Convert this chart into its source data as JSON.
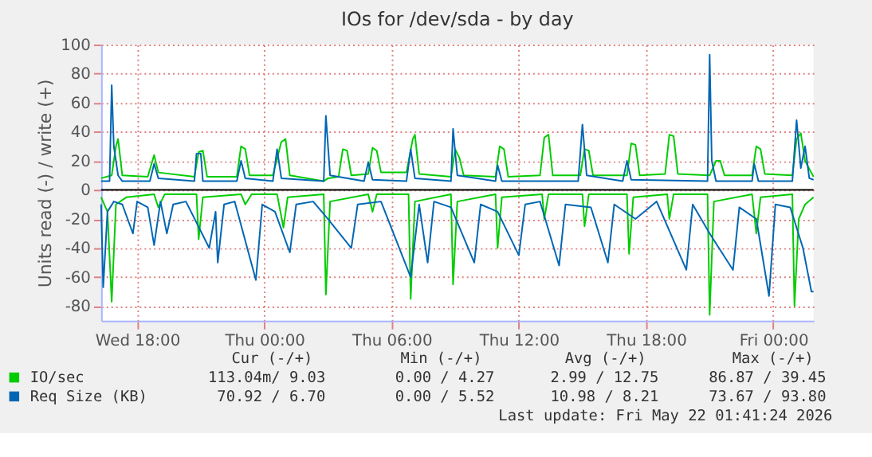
{
  "chart_data": {
    "type": "line",
    "title": "IOs for /dev/sda - by day",
    "ylabel": "Units read (-) / write (+)",
    "xlim": [
      "2026-05-20T16:18",
      "2026-05-22T01:54"
    ],
    "ylim": [
      -90,
      100
    ],
    "xticks": [
      {
        "value": "2026-05-20T18:00",
        "label": "Wed 18:00"
      },
      {
        "value": "2026-05-21T00:00",
        "label": "Thu 00:00"
      },
      {
        "value": "2026-05-21T06:00",
        "label": "Thu 06:00"
      },
      {
        "value": "2026-05-21T12:00",
        "label": "Thu 12:00"
      },
      {
        "value": "2026-05-21T18:00",
        "label": "Thu 18:00"
      },
      {
        "value": "2026-05-22T00:00",
        "label": "Fri 00:00"
      }
    ],
    "yticks": [
      -80,
      -60,
      -40,
      -20,
      0,
      20,
      40,
      60,
      80,
      100
    ],
    "grid": true,
    "legend": "bottom",
    "ref_lines": [
      {
        "axis": "y",
        "value": 0,
        "color": "#000000"
      }
    ],
    "series": [
      {
        "name": "IO/sec",
        "color": "#00cc00",
        "x": [
          "2026-05-20T16:18",
          "2026-05-20T16:48",
          "2026-05-20T17:00",
          "2026-05-20T17:06",
          "2026-05-20T17:18",
          "2026-05-20T18:30",
          "2026-05-20T18:48",
          "2026-05-20T19:00",
          "2026-05-20T20:42",
          "2026-05-20T20:54",
          "2026-05-20T21:06",
          "2026-05-20T21:18",
          "2026-05-20T22:42",
          "2026-05-20T22:54",
          "2026-05-20T23:06",
          "2026-05-20T23:18",
          "2026-05-21T00:24",
          "2026-05-21T00:48",
          "2026-05-21T01:00",
          "2026-05-21T01:12",
          "2026-05-21T02:48",
          "2026-05-21T03:00",
          "2026-05-21T03:30",
          "2026-05-21T03:42",
          "2026-05-21T03:54",
          "2026-05-21T04:06",
          "2026-05-21T04:54",
          "2026-05-21T05:06",
          "2026-05-21T05:18",
          "2026-05-21T05:30",
          "2026-05-21T06:42",
          "2026-05-21T07:00",
          "2026-05-21T07:06",
          "2026-05-21T07:18",
          "2026-05-21T08:48",
          "2026-05-21T09:00",
          "2026-05-21T09:12",
          "2026-05-21T09:24",
          "2026-05-21T10:54",
          "2026-05-21T11:06",
          "2026-05-21T11:18",
          "2026-05-21T11:30",
          "2026-05-21T13:00",
          "2026-05-21T13:12",
          "2026-05-21T13:24",
          "2026-05-21T13:36",
          "2026-05-21T14:54",
          "2026-05-21T15:06",
          "2026-05-21T15:18",
          "2026-05-21T15:30",
          "2026-05-21T17:06",
          "2026-05-21T17:18",
          "2026-05-21T17:30",
          "2026-05-21T17:42",
          "2026-05-21T18:54",
          "2026-05-21T19:06",
          "2026-05-21T19:18",
          "2026-05-21T19:30",
          "2026-05-21T21:00",
          "2026-05-21T21:18",
          "2026-05-21T21:30",
          "2026-05-21T21:42",
          "2026-05-21T23:00",
          "2026-05-21T23:12",
          "2026-05-21T23:24",
          "2026-05-21T23:36",
          "2026-05-22T00:54",
          "2026-05-22T01:06",
          "2026-05-22T01:18",
          "2026-05-22T01:30",
          "2026-05-22T01:54"
        ],
        "values": [
          8,
          10,
          30,
          35,
          10,
          9,
          24,
          12,
          9,
          26,
          27,
          9,
          9,
          30,
          28,
          10,
          10,
          33,
          35,
          10,
          6,
          8,
          9,
          28,
          27,
          10,
          11,
          29,
          27,
          12,
          12,
          35,
          38,
          11,
          9,
          28,
          22,
          10,
          9,
          30,
          28,
          9,
          10,
          36,
          38,
          10,
          10,
          28,
          27,
          10,
          10,
          32,
          31,
          10,
          11,
          38,
          37,
          11,
          10,
          20,
          20,
          10,
          10,
          30,
          28,
          11,
          10,
          35,
          39,
          20,
          9
        ]
      },
      {
        "color": "#00cc00",
        "x": [
          "2026-05-20T16:18",
          "2026-05-20T16:36",
          "2026-05-20T16:48",
          "2026-05-20T17:00",
          "2026-05-20T17:30",
          "2026-05-20T18:48",
          "2026-05-20T19:00",
          "2026-05-20T19:18",
          "2026-05-20T20:48",
          "2026-05-20T20:54",
          "2026-05-20T21:06",
          "2026-05-20T22:54",
          "2026-05-20T23:06",
          "2026-05-20T23:24",
          "2026-05-21T00:36",
          "2026-05-21T00:54",
          "2026-05-21T01:06",
          "2026-05-21T02:48",
          "2026-05-21T02:54",
          "2026-05-21T03:06",
          "2026-05-21T04:54",
          "2026-05-21T05:06",
          "2026-05-21T05:18",
          "2026-05-21T06:48",
          "2026-05-21T06:54",
          "2026-05-21T07:06",
          "2026-05-21T08:48",
          "2026-05-21T08:54",
          "2026-05-21T09:06",
          "2026-05-21T10:54",
          "2026-05-21T11:00",
          "2026-05-21T11:12",
          "2026-05-21T13:06",
          "2026-05-21T13:12",
          "2026-05-21T13:24",
          "2026-05-21T15:00",
          "2026-05-21T15:06",
          "2026-05-21T15:18",
          "2026-05-21T17:06",
          "2026-05-21T17:12",
          "2026-05-21T17:24",
          "2026-05-21T19:00",
          "2026-05-21T19:06",
          "2026-05-21T19:18",
          "2026-05-21T20:54",
          "2026-05-21T21:00",
          "2026-05-21T21:12",
          "2026-05-21T23:00",
          "2026-05-21T23:12",
          "2026-05-21T23:24",
          "2026-05-22T00:54",
          "2026-05-22T01:00",
          "2026-05-22T01:12",
          "2026-05-22T01:30",
          "2026-05-22T01:54"
        ],
        "values": [
          -5,
          -15,
          -77,
          -10,
          -5,
          -3,
          -12,
          -3,
          -3,
          -34,
          -5,
          -3,
          -10,
          -3,
          -3,
          -26,
          -5,
          -3,
          -72,
          -8,
          -3,
          -15,
          -3,
          -3,
          -75,
          -8,
          -3,
          -65,
          -8,
          -3,
          -40,
          -5,
          -3,
          -20,
          -3,
          -3,
          -25,
          -3,
          -3,
          -44,
          -5,
          -3,
          -20,
          -3,
          -3,
          -86,
          -8,
          -3,
          -30,
          -5,
          -3,
          -80,
          -20,
          -10,
          -5
        ]
      },
      {
        "name": "Req Size (KB)",
        "color": "#0066b3",
        "x": [
          "2026-05-20T16:18",
          "2026-05-20T16:42",
          "2026-05-20T16:48",
          "2026-05-20T16:54",
          "2026-05-20T17:06",
          "2026-05-20T17:18",
          "2026-05-20T18:36",
          "2026-05-20T18:48",
          "2026-05-20T19:00",
          "2026-05-20T20:42",
          "2026-05-20T20:48",
          "2026-05-20T21:00",
          "2026-05-20T21:06",
          "2026-05-20T22:42",
          "2026-05-20T22:54",
          "2026-05-20T23:06",
          "2026-05-21T00:24",
          "2026-05-21T00:36",
          "2026-05-21T00:48",
          "2026-05-21T02:48",
          "2026-05-21T02:54",
          "2026-05-21T03:06",
          "2026-05-21T04:42",
          "2026-05-21T04:54",
          "2026-05-21T05:06",
          "2026-05-21T06:42",
          "2026-05-21T06:54",
          "2026-05-21T07:06",
          "2026-05-21T08:48",
          "2026-05-21T08:54",
          "2026-05-21T09:06",
          "2026-05-21T10:54",
          "2026-05-21T11:00",
          "2026-05-21T11:12",
          "2026-05-21T14:48",
          "2026-05-21T15:00",
          "2026-05-21T15:12",
          "2026-05-21T16:54",
          "2026-05-21T17:06",
          "2026-05-21T17:18",
          "2026-05-21T20:54",
          "2026-05-21T21:00",
          "2026-05-21T21:06",
          "2026-05-21T21:18",
          "2026-05-21T23:00",
          "2026-05-21T23:06",
          "2026-05-21T23:18",
          "2026-05-22T00:54",
          "2026-05-22T01:06",
          "2026-05-22T01:18",
          "2026-05-22T01:30",
          "2026-05-22T01:42",
          "2026-05-22T01:54"
        ],
        "values": [
          6,
          6,
          72,
          30,
          10,
          6,
          6,
          18,
          8,
          6,
          25,
          25,
          6,
          6,
          20,
          8,
          6,
          28,
          8,
          6,
          51,
          10,
          6,
          19,
          7,
          6,
          28,
          8,
          6,
          42,
          10,
          6,
          17,
          6,
          6,
          45,
          10,
          6,
          20,
          7,
          6,
          93,
          20,
          6,
          6,
          18,
          6,
          6,
          48,
          15,
          30,
          8,
          7
        ]
      },
      {
        "color": "#0066b3",
        "x": [
          "2026-05-20T16:18",
          "2026-05-20T16:24",
          "2026-05-20T16:36",
          "2026-05-20T16:54",
          "2026-05-20T17:18",
          "2026-05-20T17:48",
          "2026-05-20T18:00",
          "2026-05-20T18:30",
          "2026-05-20T18:48",
          "2026-05-20T19:06",
          "2026-05-20T19:24",
          "2026-05-20T19:42",
          "2026-05-20T20:18",
          "2026-05-20T21:24",
          "2026-05-20T21:42",
          "2026-05-20T21:48",
          "2026-05-20T22:06",
          "2026-05-20T22:36",
          "2026-05-20T23:36",
          "2026-05-20T23:54",
          "2026-05-21T00:30",
          "2026-05-21T01:12",
          "2026-05-21T01:30",
          "2026-05-21T02:18",
          "2026-05-21T03:00",
          "2026-05-21T04:06",
          "2026-05-21T04:24",
          "2026-05-21T05:30",
          "2026-05-21T06:54",
          "2026-05-21T07:18",
          "2026-05-21T07:42",
          "2026-05-21T08:00",
          "2026-05-21T08:48",
          "2026-05-21T09:54",
          "2026-05-21T10:12",
          "2026-05-21T11:00",
          "2026-05-21T12:00",
          "2026-05-21T12:18",
          "2026-05-21T13:00",
          "2026-05-21T13:54",
          "2026-05-21T14:12",
          "2026-05-21T15:24",
          "2026-05-21T16:12",
          "2026-05-21T16:30",
          "2026-05-21T17:30",
          "2026-05-21T18:30",
          "2026-05-21T19:54",
          "2026-05-21T20:12",
          "2026-05-21T21:00",
          "2026-05-21T22:06",
          "2026-05-21T22:24",
          "2026-05-21T23:12",
          "2026-05-21T23:48",
          "2026-05-22T00:06",
          "2026-05-22T00:48",
          "2026-05-22T01:24",
          "2026-05-22T01:48",
          "2026-05-22T01:54"
        ],
        "values": [
          -10,
          -67,
          -15,
          -8,
          -10,
          -30,
          -8,
          -12,
          -38,
          -8,
          -30,
          -10,
          -8,
          -40,
          -15,
          -50,
          -10,
          -8,
          -62,
          -10,
          -15,
          -43,
          -10,
          -8,
          -20,
          -40,
          -10,
          -8,
          -60,
          -10,
          -50,
          -8,
          -12,
          -50,
          -10,
          -15,
          -45,
          -10,
          -8,
          -52,
          -10,
          -12,
          -50,
          -10,
          -20,
          -8,
          -55,
          -10,
          -30,
          -55,
          -12,
          -20,
          -73,
          -10,
          -12,
          -40,
          -70,
          -70
        ]
      }
    ],
    "annotations": [
      "Cur (-/+)",
      "Min (-/+)",
      "Avg (-/+)",
      "Max (-/+)",
      "113.04m/  9.03",
      "0.00 /  4.27",
      "2.99 / 12.75",
      "86.87 / 39.45",
      "70.92 /  6.70",
      "0.00 /  5.52",
      "10.98 /  8.21",
      "73.67 / 93.80",
      "Last update: Fri May 22 01:41:24 2026"
    ]
  }
}
